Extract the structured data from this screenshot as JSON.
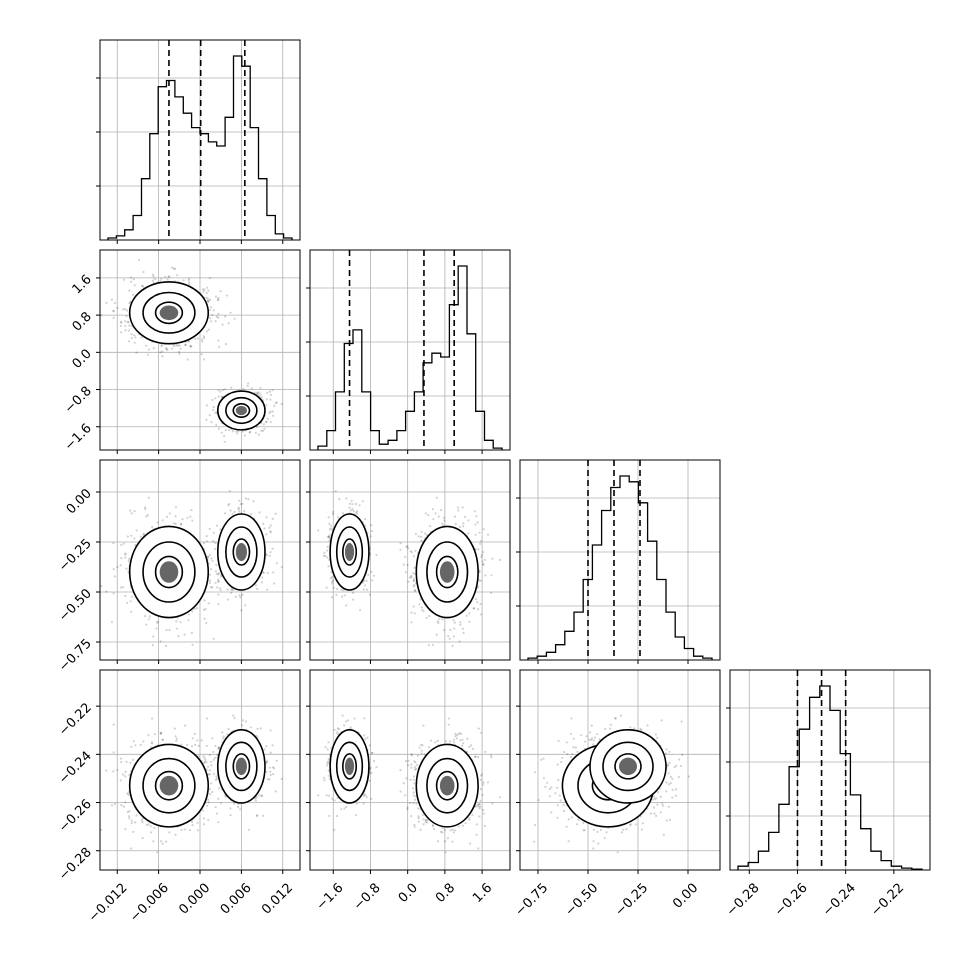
{
  "chart_data": {
    "type": "corner",
    "parameters": [
      {
        "range": [
          -0.0145,
          0.0145
        ],
        "ticks": [
          -0.012,
          -0.006,
          0.0,
          0.006,
          0.012
        ],
        "tick_labels": [
          "−0.012",
          "−0.006",
          "0.000",
          "0.006",
          "0.012"
        ],
        "quantiles": [
          -0.0045,
          0.0001,
          0.0065
        ]
      },
      {
        "range": [
          -2.1,
          2.2
        ],
        "ticks": [
          -1.6,
          -0.8,
          0.0,
          0.8,
          1.6
        ],
        "tick_labels": [
          "−1.6",
          "−0.8",
          "0.0",
          "0.8",
          "1.6"
        ],
        "quantiles": [
          -1.25,
          0.35,
          1.0
        ]
      },
      {
        "range": [
          -0.84,
          0.16
        ],
        "ticks": [
          -0.75,
          -0.5,
          -0.25,
          0.0
        ],
        "tick_labels": [
          "−0.75",
          "−0.50",
          "−0.25",
          "0.00"
        ],
        "quantiles": [
          -0.5,
          -0.37,
          -0.24
        ]
      },
      {
        "range": [
          -0.288,
          -0.205
        ],
        "ticks": [
          -0.28,
          -0.26,
          -0.24,
          -0.22
        ],
        "tick_labels": [
          "−0.28",
          "−0.26",
          "−0.24",
          "−0.22"
        ],
        "quantiles": [
          -0.26,
          -0.25,
          -0.24
        ]
      }
    ],
    "histograms": [
      {
        "counts": [
          0.01,
          0.02,
          0.05,
          0.12,
          0.3,
          0.52,
          0.75,
          0.78,
          0.7,
          0.62,
          0.55,
          0.52,
          0.48,
          0.46,
          0.6,
          0.9,
          0.85,
          0.55,
          0.3,
          0.12,
          0.03,
          0.01
        ]
      },
      {
        "counts": [
          0.02,
          0.1,
          0.3,
          0.55,
          0.62,
          0.3,
          0.1,
          0.03,
          0.05,
          0.1,
          0.2,
          0.3,
          0.45,
          0.5,
          0.48,
          0.75,
          0.95,
          0.6,
          0.2,
          0.05,
          0.01
        ]
      },
      {
        "counts": [
          0.01,
          0.02,
          0.04,
          0.08,
          0.15,
          0.25,
          0.42,
          0.6,
          0.78,
          0.9,
          0.96,
          0.93,
          0.82,
          0.62,
          0.42,
          0.25,
          0.12,
          0.06,
          0.02,
          0.01
        ]
      },
      {
        "counts": [
          0.02,
          0.04,
          0.1,
          0.2,
          0.35,
          0.55,
          0.75,
          0.92,
          0.98,
          0.85,
          0.62,
          0.4,
          0.22,
          0.1,
          0.05,
          0.02,
          0.01,
          0.005
        ]
      }
    ]
  }
}
